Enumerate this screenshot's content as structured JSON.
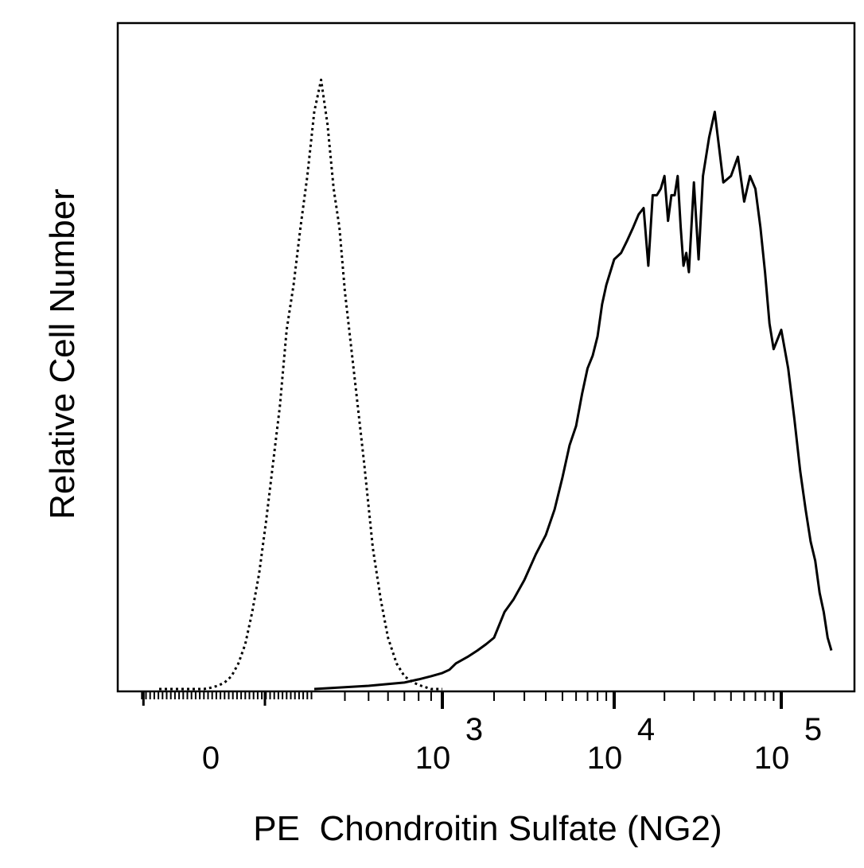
{
  "chart_data": {
    "type": "line",
    "title": "",
    "xlabel": "PE  Chondroitin Sulfate (NG2)",
    "ylabel": "Relative Cell Number",
    "x_scale": "biexponential",
    "xlim": [
      -200,
      200000
    ],
    "ylim": [
      0,
      100
    ],
    "grid": false,
    "legend": "none",
    "x_tick_labels": [
      {
        "value": 0,
        "base": "0",
        "exp": ""
      },
      {
        "value": 1000,
        "base": "10",
        "exp": "3"
      },
      {
        "value": 10000,
        "base": "10",
        "exp": "4"
      },
      {
        "value": 100000,
        "base": "10",
        "exp": "5"
      }
    ],
    "series": [
      {
        "style": "dotted",
        "color": "#000000",
        "x": [
          -150,
          -100,
          -50,
          -20,
          0,
          20,
          40,
          60,
          80,
          100,
          120,
          140,
          160,
          180,
          200,
          220,
          240,
          260,
          280,
          300,
          320,
          340,
          360,
          380,
          400,
          440,
          480,
          520,
          560,
          600,
          650,
          700,
          760,
          820,
          900,
          1000
        ],
        "y": [
          0,
          0,
          0,
          0,
          0.2,
          0.5,
          1,
          2,
          4,
          7,
          12,
          18,
          26,
          35,
          44,
          56,
          63,
          72,
          80,
          90,
          95,
          88,
          78,
          72,
          62,
          48,
          35,
          22,
          14,
          8,
          4,
          2,
          1,
          0.5,
          0,
          0
        ]
      },
      {
        "style": "solid",
        "color": "#000000",
        "x": [
          300,
          500,
          700,
          800,
          900,
          1000,
          1100,
          1200,
          1400,
          1600,
          1800,
          2000,
          2300,
          2600,
          3000,
          3500,
          4000,
          4500,
          5000,
          5500,
          6000,
          6500,
          7000,
          7500,
          8000,
          8500,
          9000,
          10000,
          11000,
          12000,
          13000,
          14000,
          15000,
          16000,
          17000,
          18000,
          19000,
          20000,
          21000,
          22000,
          23000,
          24000,
          25000,
          26000,
          27000,
          28000,
          30000,
          32000,
          34000,
          37000,
          40000,
          45000,
          50000,
          55000,
          60000,
          65000,
          70000,
          75000,
          80000,
          85000,
          90000,
          100000,
          110000,
          120000,
          130000,
          140000,
          150000,
          160000,
          170000,
          180000,
          190000,
          200000
        ],
        "y": [
          0,
          0.5,
          1,
          1.5,
          2,
          2.5,
          3,
          4,
          5,
          6,
          7,
          8,
          12,
          14,
          17,
          21,
          24,
          28,
          33,
          38,
          41,
          46,
          50,
          52,
          55,
          60,
          63,
          67,
          68,
          70,
          72,
          74,
          75,
          66,
          77,
          77,
          78,
          80,
          73,
          77,
          77,
          80,
          72,
          66,
          68,
          65,
          79,
          67,
          80,
          86,
          90,
          79,
          80,
          83,
          76,
          80,
          78,
          72,
          65,
          57,
          53,
          56,
          50,
          42,
          34,
          28,
          23,
          20,
          15,
          12,
          8,
          6
        ]
      }
    ]
  }
}
